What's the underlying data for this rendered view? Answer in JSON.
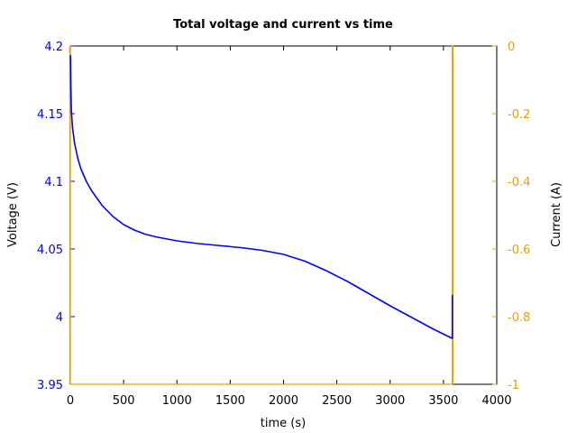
{
  "chart_data": {
    "type": "line",
    "title": "Total voltage and current vs time",
    "xlabel": "time (s)",
    "ylabel": "Voltage (V)",
    "y2label": "Current (A)",
    "xlim": [
      0,
      4000
    ],
    "ylim": [
      3.95,
      4.2
    ],
    "y2lim": [
      -1,
      0
    ],
    "xticks": [
      "0",
      "500",
      "1000",
      "1500",
      "2000",
      "2500",
      "3000",
      "3500",
      "4000"
    ],
    "yticks": [
      "3.95",
      "4",
      "4.05",
      "4.1",
      "4.15",
      "4.2"
    ],
    "y2ticks": [
      "-1",
      "-0.8",
      "-0.6",
      "-0.4",
      "-0.2",
      "0"
    ],
    "grid": false,
    "colors": {
      "voltage": "#0000ff",
      "current": "#e6a000",
      "left_axis": "#0000ff",
      "right_axis": "#e6a000"
    },
    "series": [
      {
        "axis": "left",
        "x": [
          0,
          2,
          5,
          10,
          20,
          40,
          70,
          100,
          150,
          200,
          300,
          400,
          500,
          600,
          700,
          800,
          900,
          1000,
          1200,
          1400,
          1600,
          1800,
          2000,
          2200,
          2400,
          2600,
          2800,
          3000,
          3200,
          3400,
          3580,
          3583,
          3583
        ],
        "y": [
          4.193,
          4.193,
          4.17,
          4.152,
          4.14,
          4.128,
          4.117,
          4.109,
          4.1,
          4.093,
          4.082,
          4.074,
          4.068,
          4.064,
          4.061,
          4.059,
          4.0575,
          4.056,
          4.054,
          4.0525,
          4.051,
          4.049,
          4.046,
          4.041,
          4.034,
          4.026,
          4.017,
          4.008,
          3.9995,
          3.991,
          3.984,
          3.984,
          4.016
        ]
      },
      {
        "axis": "right",
        "x": [
          -5,
          -5,
          0,
          0,
          3583,
          3583,
          3590,
          3590
        ],
        "y": [
          -1,
          0,
          0,
          -1,
          -1,
          0,
          0,
          -1
        ]
      }
    ]
  }
}
